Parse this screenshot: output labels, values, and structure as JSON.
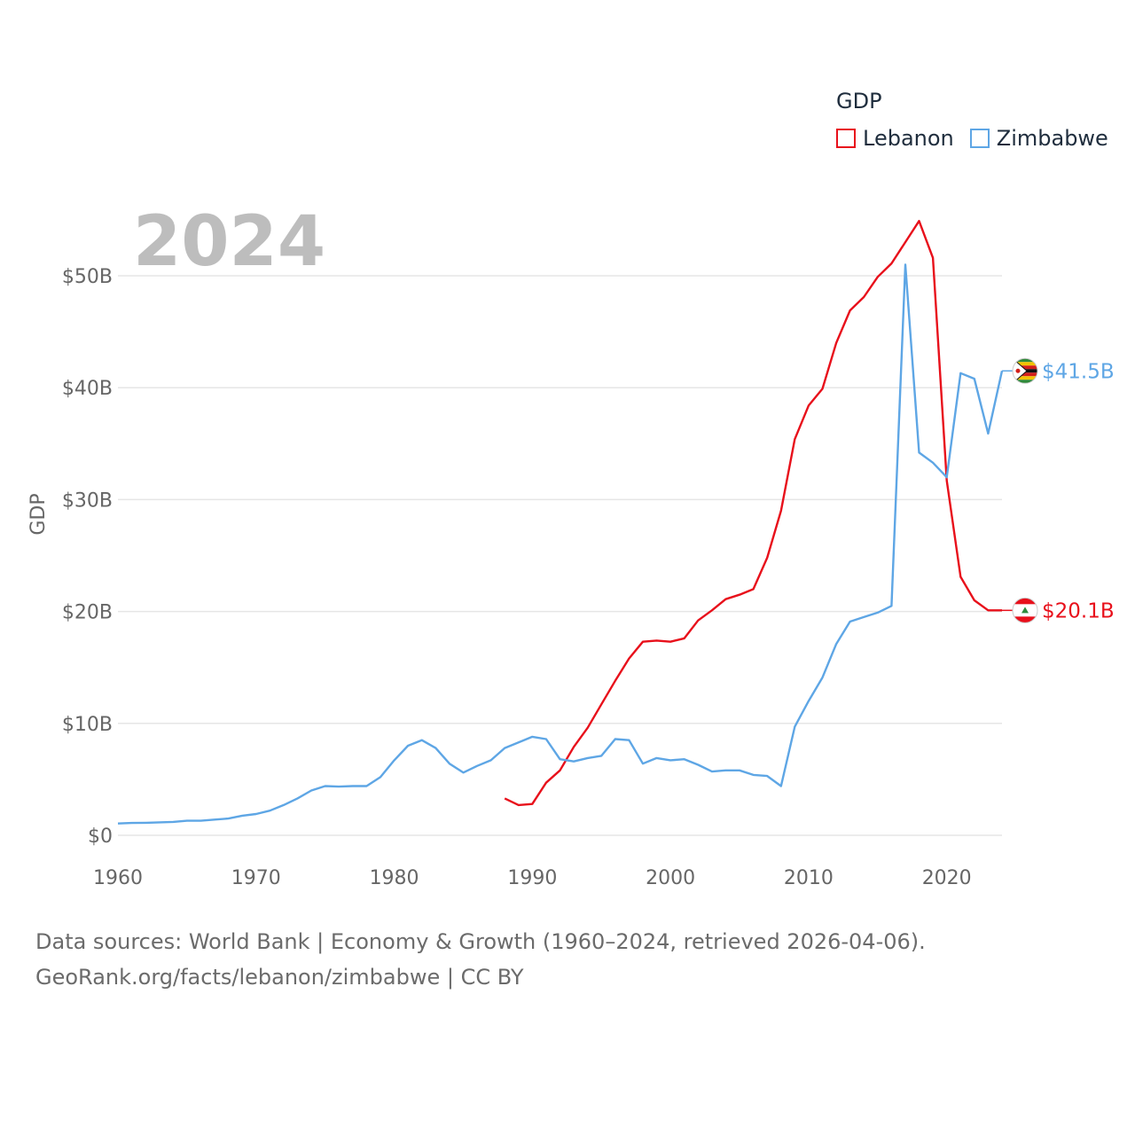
{
  "chart_data": {
    "type": "line",
    "legend_title": "GDP",
    "year": "2024",
    "ylabel": "GDP",
    "xlabel": "",
    "xlim": [
      1960,
      2024
    ],
    "ylim": [
      0,
      55
    ],
    "y_ticks": [
      {
        "value": 0,
        "label": "$0"
      },
      {
        "value": 10,
        "label": "$10B"
      },
      {
        "value": 20,
        "label": "$20B"
      },
      {
        "value": 30,
        "label": "$30B"
      },
      {
        "value": 40,
        "label": "$40B"
      },
      {
        "value": 50,
        "label": "$50B"
      }
    ],
    "x_ticks": [
      {
        "value": 1960,
        "label": "1960"
      },
      {
        "value": 1970,
        "label": "1970"
      },
      {
        "value": 1980,
        "label": "1980"
      },
      {
        "value": 1990,
        "label": "1990"
      },
      {
        "value": 2000,
        "label": "2000"
      },
      {
        "value": 2010,
        "label": "2010"
      },
      {
        "value": 2020,
        "label": "2020"
      }
    ],
    "series": [
      {
        "name": "Lebanon",
        "color": "#e8101b",
        "end_label": "$20.1B",
        "flag": "lebanon-flag",
        "x": [
          1988,
          1989,
          1990,
          1991,
          1992,
          1993,
          1994,
          1995,
          1996,
          1997,
          1998,
          1999,
          2000,
          2001,
          2002,
          2003,
          2004,
          2005,
          2006,
          2007,
          2008,
          2009,
          2010,
          2011,
          2012,
          2013,
          2014,
          2015,
          2016,
          2017,
          2018,
          2019,
          2020,
          2021,
          2022,
          2023,
          2024
        ],
        "values": [
          3.3,
          2.7,
          2.8,
          4.7,
          5.8,
          7.9,
          9.6,
          11.7,
          13.8,
          15.8,
          17.3,
          17.4,
          17.3,
          17.6,
          19.2,
          20.1,
          21.1,
          21.5,
          22.0,
          24.8,
          29.0,
          35.4,
          38.4,
          39.9,
          44.0,
          46.9,
          48.1,
          49.9,
          51.1,
          53.0,
          54.9,
          51.6,
          31.7,
          23.1,
          21.0,
          20.1,
          20.1
        ]
      },
      {
        "name": "Zimbabwe",
        "color": "#5ea6e5",
        "end_label": "$41.5B",
        "flag": "zimbabwe-flag",
        "x": [
          1960,
          1961,
          1962,
          1963,
          1964,
          1965,
          1966,
          1967,
          1968,
          1969,
          1970,
          1971,
          1972,
          1973,
          1974,
          1975,
          1976,
          1977,
          1978,
          1979,
          1980,
          1981,
          1982,
          1983,
          1984,
          1985,
          1986,
          1987,
          1988,
          1989,
          1990,
          1991,
          1992,
          1993,
          1994,
          1995,
          1996,
          1997,
          1998,
          1999,
          2000,
          2001,
          2002,
          2003,
          2004,
          2005,
          2006,
          2007,
          2008,
          2009,
          2010,
          2011,
          2012,
          2013,
          2014,
          2015,
          2016,
          2017,
          2018,
          2019,
          2020,
          2021,
          2022,
          2023,
          2024
        ],
        "values": [
          1.05,
          1.1,
          1.12,
          1.16,
          1.2,
          1.3,
          1.3,
          1.4,
          1.5,
          1.75,
          1.9,
          2.2,
          2.7,
          3.3,
          4.0,
          4.4,
          4.35,
          4.4,
          4.4,
          5.2,
          6.7,
          8.0,
          8.5,
          7.8,
          6.4,
          5.6,
          6.2,
          6.7,
          7.8,
          8.3,
          8.8,
          8.6,
          6.8,
          6.6,
          6.9,
          7.1,
          8.6,
          8.5,
          6.4,
          6.9,
          6.7,
          6.8,
          6.3,
          5.7,
          5.8,
          5.8,
          5.4,
          5.3,
          4.4,
          9.7,
          12.0,
          14.1,
          17.1,
          19.1,
          19.5,
          19.9,
          20.5,
          51.0,
          34.2,
          33.3,
          32.0,
          41.3,
          40.8,
          35.9,
          41.5
        ]
      }
    ]
  },
  "footer": {
    "line1": "Data sources: World Bank | Economy & Growth (1960–2024, retrieved 2026-04-06).",
    "line2": "GeoRank.org/facts/lebanon/zimbabwe | CC BY"
  }
}
